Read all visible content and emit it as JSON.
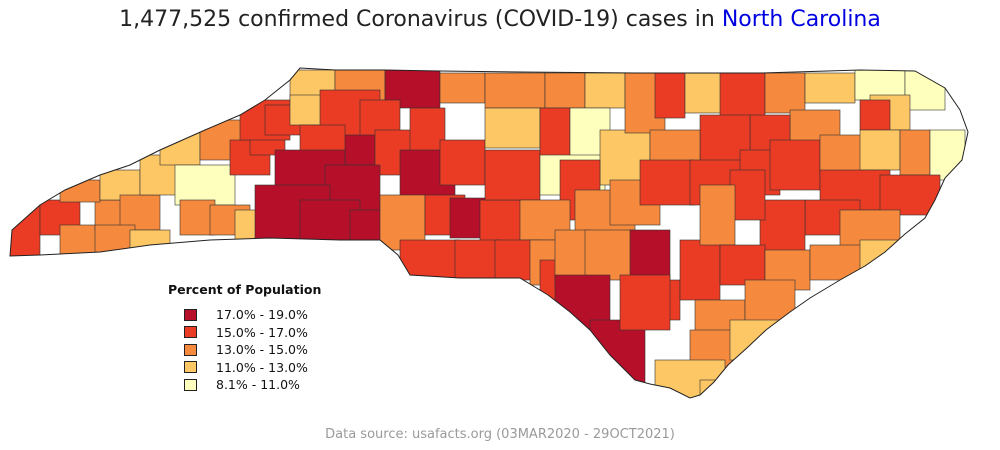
{
  "title": {
    "prefix": "1,477,525 confirmed Coronavirus (COVID-19) cases in ",
    "state": "North Carolina",
    "state_color": "#0000e0"
  },
  "legend": {
    "title": "Percent of Population",
    "items": [
      {
        "label": "17.0% - 19.0%",
        "color": "#b50f2a"
      },
      {
        "label": "15.0% - 17.0%",
        "color": "#ea3b24"
      },
      {
        "label": "13.0% - 15.0%",
        "color": "#f58a3e"
      },
      {
        "label": "11.0% - 13.0%",
        "color": "#fcc764"
      },
      {
        "label": "8.1% - 11.0%",
        "color": "#ffffbd"
      }
    ]
  },
  "footer": "Data source: usafacts.org (03MAR2020 - 29OCT2021)"
}
